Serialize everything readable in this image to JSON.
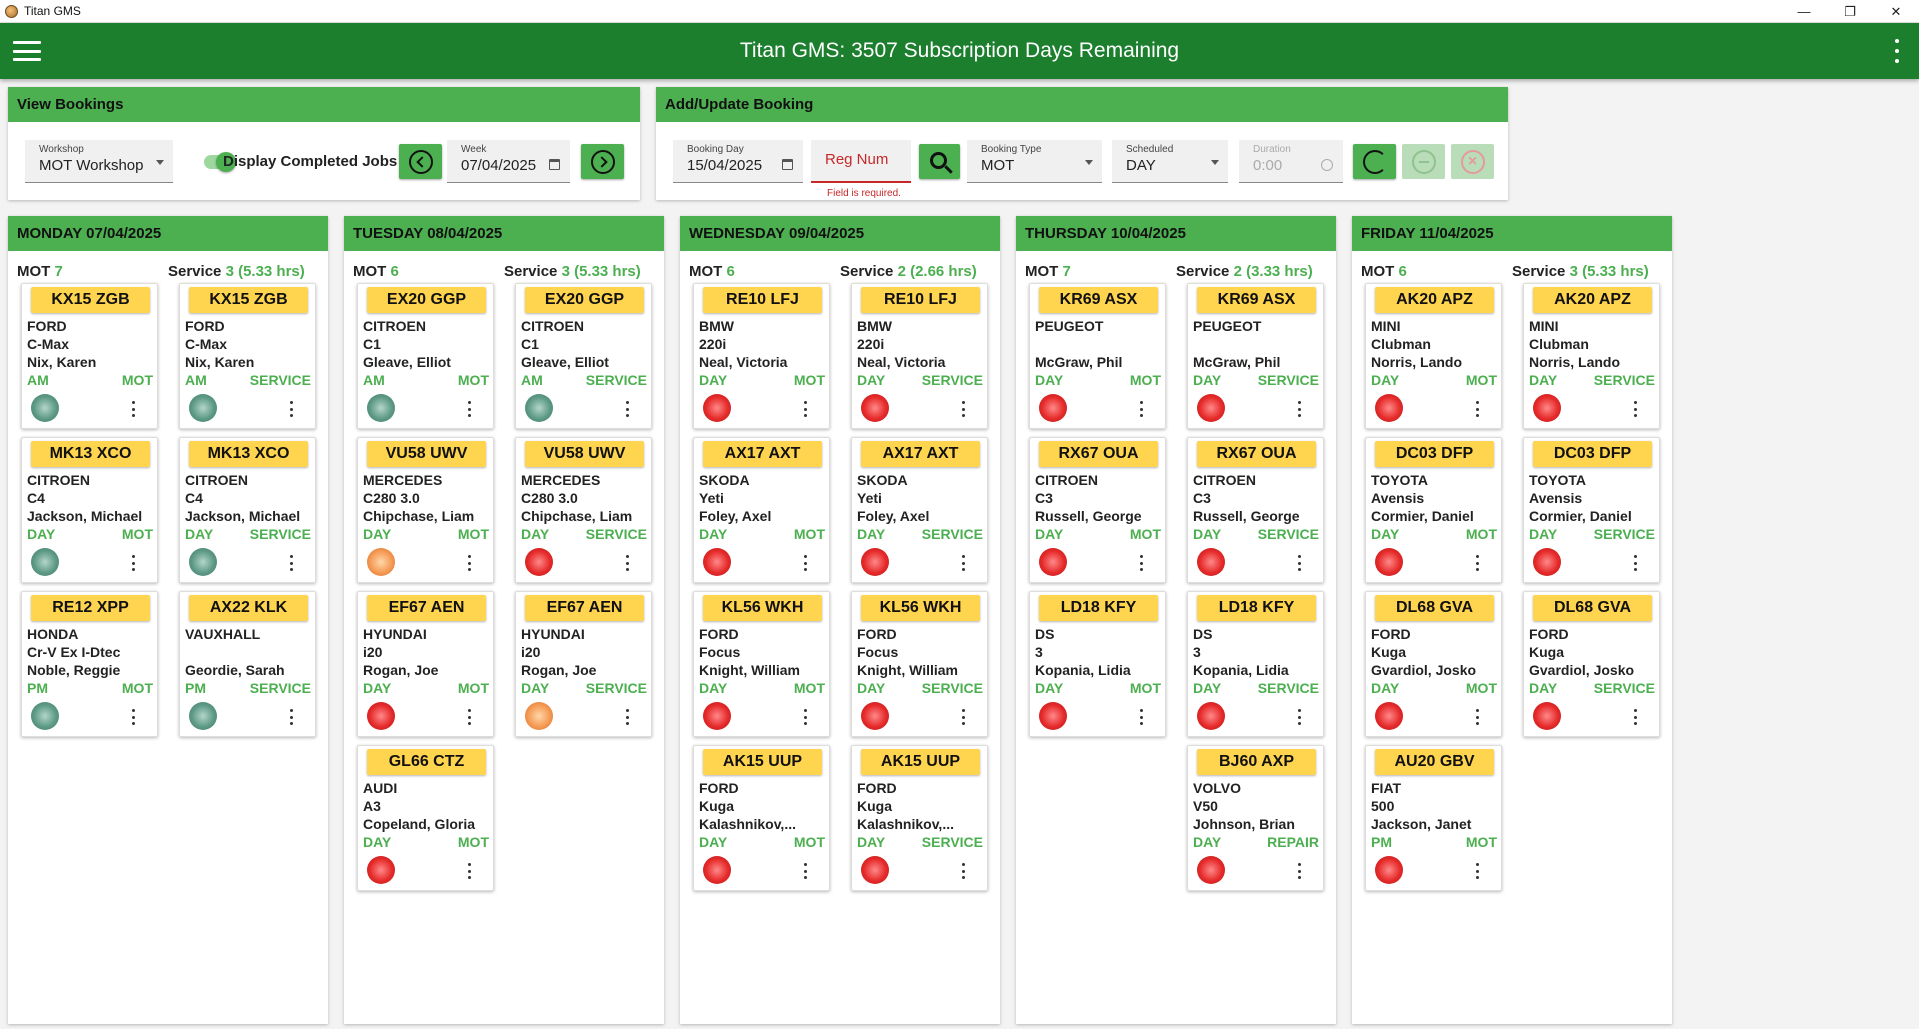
{
  "window": {
    "title": "Titan GMS",
    "controls": [
      "—",
      "❐",
      "✕"
    ]
  },
  "appbar": {
    "title": "Titan GMS: 3507 Subscription Days Remaining"
  },
  "view_bookings": {
    "header": "View Bookings",
    "workshop_label": "Workshop",
    "workshop_value": "MOT Workshop",
    "toggle_label": "Display Completed Jobs",
    "week_label": "Week",
    "week_value": "07/04/2025"
  },
  "add_update": {
    "header": "Add/Update Booking",
    "booking_day_label": "Booking Day",
    "booking_day_value": "15/04/2025",
    "reg_placeholder": "Reg Num",
    "reg_error": "Field is required.",
    "booking_type_label": "Booking Type",
    "booking_type_value": "MOT",
    "scheduled_label": "Scheduled",
    "scheduled_value": "DAY",
    "duration_label": "Duration",
    "duration_value": "0:00"
  },
  "status_colors": {
    "done": "#5e9a87",
    "pending": "#e62b2b",
    "in_progress": "#f59a55"
  },
  "days": [
    {
      "header": "MONDAY 07/04/2025",
      "mot_label": "MOT",
      "mot_count": "7",
      "service_label": "Service",
      "service_count": "3 (5.33 hrs)",
      "mot": [
        {
          "reg": "KX15 ZGB",
          "make": "FORD",
          "model": "C-Max",
          "customer": "Nix, Karen",
          "slot": "AM",
          "type": "MOT",
          "status": "green"
        },
        {
          "reg": "MK13 XCO",
          "make": "CITROEN",
          "model": "C4",
          "customer": "Jackson, Michael",
          "slot": "DAY",
          "type": "MOT",
          "status": "green"
        },
        {
          "reg": "RE12 XPP",
          "make": "HONDA",
          "model": "Cr-V Ex I-Dtec",
          "customer": "Noble, Reggie",
          "slot": "PM",
          "type": "MOT",
          "status": "green"
        }
      ],
      "service": [
        {
          "reg": "KX15 ZGB",
          "make": "FORD",
          "model": "C-Max",
          "customer": "Nix, Karen",
          "slot": "AM",
          "type": "SERVICE",
          "status": "green"
        },
        {
          "reg": "MK13 XCO",
          "make": "CITROEN",
          "model": "C4",
          "customer": "Jackson, Michael",
          "slot": "DAY",
          "type": "SERVICE",
          "status": "green"
        },
        {
          "reg": "AX22 KLK",
          "make": "VAUXHALL",
          "model": "",
          "customer": "Geordie, Sarah",
          "slot": "PM",
          "type": "SERVICE",
          "status": "green"
        }
      ]
    },
    {
      "header": "TUESDAY 08/04/2025",
      "mot_label": "MOT",
      "mot_count": "6",
      "service_label": "Service",
      "service_count": "3 (5.33 hrs)",
      "mot": [
        {
          "reg": "EX20 GGP",
          "make": "CITROEN",
          "model": "C1",
          "customer": "Gleave, Elliot",
          "slot": "AM",
          "type": "MOT",
          "status": "green"
        },
        {
          "reg": "VU58 UWV",
          "make": "MERCEDES",
          "model": "C280 3.0",
          "customer": "Chipchase, Liam",
          "slot": "DAY",
          "type": "MOT",
          "status": "orange"
        },
        {
          "reg": "EF67 AEN",
          "make": "HYUNDAI",
          "model": "i20",
          "customer": "Rogan, Joe",
          "slot": "DAY",
          "type": "MOT",
          "status": "red"
        },
        {
          "reg": "GL66 CTZ",
          "make": "AUDI",
          "model": "A3",
          "customer": "Copeland, Gloria",
          "slot": "DAY",
          "type": "MOT",
          "status": "red"
        }
      ],
      "service": [
        {
          "reg": "EX20 GGP",
          "make": "CITROEN",
          "model": "C1",
          "customer": "Gleave, Elliot",
          "slot": "AM",
          "type": "SERVICE",
          "status": "green"
        },
        {
          "reg": "VU58 UWV",
          "make": "MERCEDES",
          "model": "C280 3.0",
          "customer": "Chipchase, Liam",
          "slot": "DAY",
          "type": "SERVICE",
          "status": "red"
        },
        {
          "reg": "EF67 AEN",
          "make": "HYUNDAI",
          "model": "i20",
          "customer": "Rogan, Joe",
          "slot": "DAY",
          "type": "SERVICE",
          "status": "orange"
        }
      ]
    },
    {
      "header": "WEDNESDAY 09/04/2025",
      "mot_label": "MOT",
      "mot_count": "6",
      "service_label": "Service",
      "service_count": "2 (2.66 hrs)",
      "mot": [
        {
          "reg": "RE10 LFJ",
          "make": "BMW",
          "model": "220i",
          "customer": "Neal, Victoria",
          "slot": "DAY",
          "type": "MOT",
          "status": "red"
        },
        {
          "reg": "AX17 AXT",
          "make": "SKODA",
          "model": "Yeti",
          "customer": "Foley, Axel",
          "slot": "DAY",
          "type": "MOT",
          "status": "red"
        },
        {
          "reg": "KL56 WKH",
          "make": "FORD",
          "model": "Focus",
          "customer": "Knight, William",
          "slot": "DAY",
          "type": "MOT",
          "status": "red"
        },
        {
          "reg": "AK15 UUP",
          "make": "FORD",
          "model": "Kuga",
          "customer": "Kalashnikov,...",
          "slot": "DAY",
          "type": "MOT",
          "status": "red"
        }
      ],
      "service": [
        {
          "reg": "RE10 LFJ",
          "make": "BMW",
          "model": "220i",
          "customer": "Neal, Victoria",
          "slot": "DAY",
          "type": "SERVICE",
          "status": "red"
        },
        {
          "reg": "AX17 AXT",
          "make": "SKODA",
          "model": "Yeti",
          "customer": "Foley, Axel",
          "slot": "DAY",
          "type": "SERVICE",
          "status": "red"
        },
        {
          "reg": "KL56 WKH",
          "make": "FORD",
          "model": "Focus",
          "customer": "Knight, William",
          "slot": "DAY",
          "type": "SERVICE",
          "status": "red"
        },
        {
          "reg": "AK15 UUP",
          "make": "FORD",
          "model": "Kuga",
          "customer": "Kalashnikov,...",
          "slot": "DAY",
          "type": "SERVICE",
          "status": "red"
        }
      ]
    },
    {
      "header": "THURSDAY 10/04/2025",
      "mot_label": "MOT",
      "mot_count": "7",
      "service_label": "Service",
      "service_count": "2 (3.33 hrs)",
      "mot": [
        {
          "reg": "KR69 ASX",
          "make": "PEUGEOT",
          "model": "",
          "customer": "McGraw, Phil",
          "slot": "DAY",
          "type": "MOT",
          "status": "red"
        },
        {
          "reg": "RX67 OUA",
          "make": "CITROEN",
          "model": "C3",
          "customer": "Russell, George",
          "slot": "DAY",
          "type": "MOT",
          "status": "red"
        },
        {
          "reg": "LD18 KFY",
          "make": "DS",
          "model": "3",
          "customer": "Kopania, Lidia",
          "slot": "DAY",
          "type": "MOT",
          "status": "red"
        }
      ],
      "service": [
        {
          "reg": "KR69 ASX",
          "make": "PEUGEOT",
          "model": "",
          "customer": "McGraw, Phil",
          "slot": "DAY",
          "type": "SERVICE",
          "status": "red"
        },
        {
          "reg": "RX67 OUA",
          "make": "CITROEN",
          "model": "C3",
          "customer": "Russell, George",
          "slot": "DAY",
          "type": "SERVICE",
          "status": "red"
        },
        {
          "reg": "LD18 KFY",
          "make": "DS",
          "model": "3",
          "customer": "Kopania, Lidia",
          "slot": "DAY",
          "type": "SERVICE",
          "status": "red"
        },
        {
          "reg": "BJ60 AXP",
          "make": "VOLVO",
          "model": "V50",
          "customer": "Johnson, Brian",
          "slot": "DAY",
          "type": "REPAIR",
          "status": "red"
        }
      ]
    },
    {
      "header": "FRIDAY 11/04/2025",
      "mot_label": "MOT",
      "mot_count": "6",
      "service_label": "Service",
      "service_count": "3 (5.33 hrs)",
      "mot": [
        {
          "reg": "AK20 APZ",
          "make": "MINI",
          "model": "Clubman",
          "customer": "Norris, Lando",
          "slot": "DAY",
          "type": "MOT",
          "status": "red"
        },
        {
          "reg": "DC03 DFP",
          "make": "TOYOTA",
          "model": "Avensis",
          "customer": "Cormier, Daniel",
          "slot": "DAY",
          "type": "MOT",
          "status": "red"
        },
        {
          "reg": "DL68 GVA",
          "make": "FORD",
          "model": "Kuga",
          "customer": "Gvardiol, Josko",
          "slot": "DAY",
          "type": "MOT",
          "status": "red"
        },
        {
          "reg": "AU20 GBV",
          "make": "FIAT",
          "model": "500",
          "customer": "Jackson, Janet",
          "slot": "PM",
          "type": "MOT",
          "status": "red"
        }
      ],
      "service": [
        {
          "reg": "AK20 APZ",
          "make": "MINI",
          "model": "Clubman",
          "customer": "Norris, Lando",
          "slot": "DAY",
          "type": "SERVICE",
          "status": "red"
        },
        {
          "reg": "DC03 DFP",
          "make": "TOYOTA",
          "model": "Avensis",
          "customer": "Cormier, Daniel",
          "slot": "DAY",
          "type": "SERVICE",
          "status": "red"
        },
        {
          "reg": "DL68 GVA",
          "make": "FORD",
          "model": "Kuga",
          "customer": "Gvardiol, Josko",
          "slot": "DAY",
          "type": "SERVICE",
          "status": "red"
        }
      ]
    }
  ]
}
